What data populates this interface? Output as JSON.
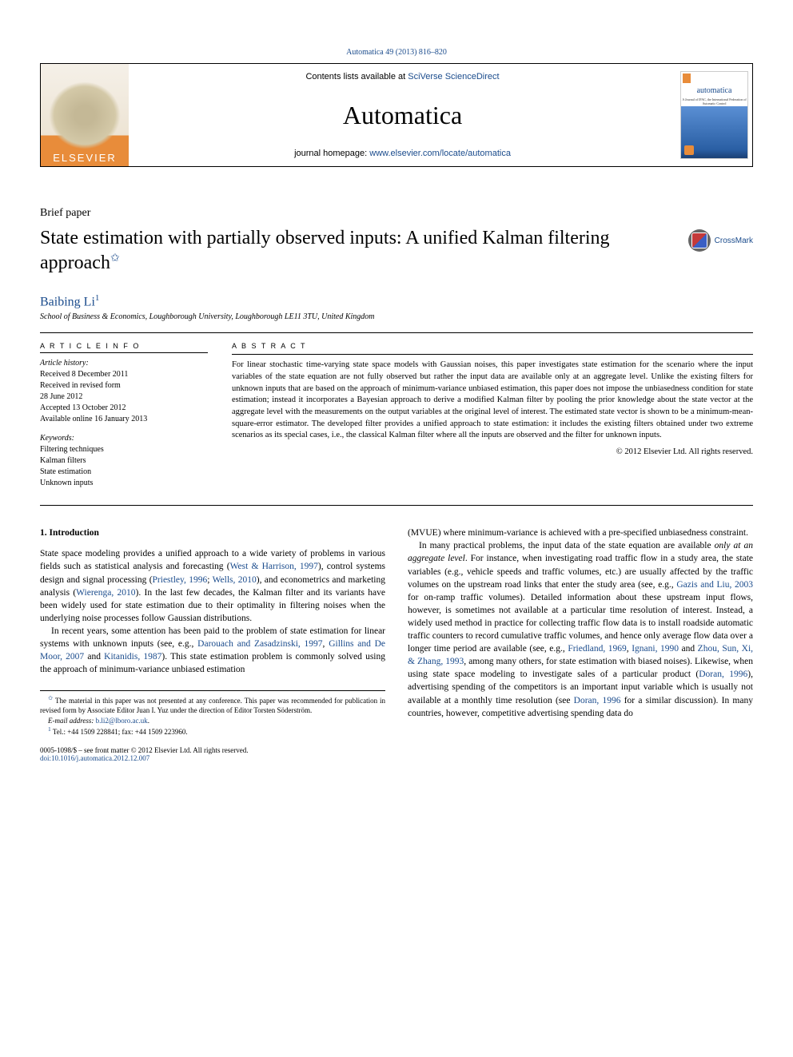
{
  "top_citation": "Automatica 49 (2013) 816–820",
  "header": {
    "contents_prefix": "Contents lists available at ",
    "contents_link": "SciVerse ScienceDirect",
    "journal": "Automatica",
    "homepage_prefix": "journal homepage: ",
    "homepage_link": "www.elsevier.com/locate/automatica",
    "elsevier": "ELSEVIER",
    "cover_title": "automatica",
    "cover_sub": "A Journal of IFAC, the International Federation of Automatic Control"
  },
  "brief_label": "Brief paper",
  "title": "State estimation with partially observed inputs: A unified Kalman filtering approach",
  "title_star": "✩",
  "crossmark": "CrossMark",
  "author": "Baibing Li",
  "author_sup": "1",
  "affiliation": "School of Business & Economics, Loughborough University, Loughborough LE11 3TU, United Kingdom",
  "meta": {
    "article_info_heading": "A R T I C L E   I N F O",
    "history_heading": "Article history:",
    "received": "Received 8 December 2011",
    "revised": "Received in revised form",
    "revised_date": "28 June 2012",
    "accepted": "Accepted 13 October 2012",
    "available": "Available online 16 January 2013",
    "keywords_heading": "Keywords:",
    "keywords": [
      "Filtering techniques",
      "Kalman filters",
      "State estimation",
      "Unknown inputs"
    ]
  },
  "abstract": {
    "heading": "A B S T R A C T",
    "text": "For linear stochastic time-varying state space models with Gaussian noises, this paper investigates state estimation for the scenario where the input variables of the state equation are not fully observed but rather the input data are available only at an aggregate level. Unlike the existing filters for unknown inputs that are based on the approach of minimum-variance unbiased estimation, this paper does not impose the unbiasedness condition for state estimation; instead it incorporates a Bayesian approach to derive a modified Kalman filter by pooling the prior knowledge about the state vector at the aggregate level with the measurements on the output variables at the original level of interest. The estimated state vector is shown to be a minimum-mean-square-error estimator. The developed filter provides a unified approach to state estimation: it includes the existing filters obtained under two extreme scenarios as its special cases, i.e., the classical Kalman filter where all the inputs are observed and the filter for unknown inputs.",
    "copyright": "© 2012 Elsevier Ltd. All rights reserved."
  },
  "body": {
    "section_number": "1.",
    "section_title": "Introduction",
    "col1": [
      {
        "type": "text",
        "content": "State space modeling provides a unified approach to a wide variety of problems in various fields such as statistical analysis and forecasting ("
      },
      {
        "type": "cite",
        "content": "West & Harrison, 1997"
      },
      {
        "type": "text",
        "content": "), control systems design and signal processing ("
      },
      {
        "type": "cite",
        "content": "Priestley, 1996"
      },
      {
        "type": "text",
        "content": "; "
      },
      {
        "type": "cite",
        "content": "Wells, 2010"
      },
      {
        "type": "text",
        "content": "), and econometrics and marketing analysis ("
      },
      {
        "type": "cite",
        "content": "Wierenga, 2010"
      },
      {
        "type": "text",
        "content": "). In the last few decades, the Kalman filter and its variants have been widely used for state estimation due to their optimality in filtering noises when the underlying noise processes follow Gaussian distributions."
      },
      {
        "type": "break"
      },
      {
        "type": "text",
        "content": "In recent years, some attention has been paid to the problem of state estimation for linear systems with unknown inputs (see, e.g., "
      },
      {
        "type": "cite",
        "content": "Darouach and Zasadzinski, 1997"
      },
      {
        "type": "text",
        "content": ", "
      },
      {
        "type": "cite",
        "content": "Gillins and De Moor, 2007"
      },
      {
        "type": "text",
        "content": " and "
      },
      {
        "type": "cite",
        "content": "Kitanidis, 1987"
      },
      {
        "type": "text",
        "content": "). This state estimation problem is commonly solved using the approach of minimum-variance unbiased estimation"
      }
    ],
    "col2": [
      {
        "type": "text",
        "content": "(MVUE) where minimum-variance is achieved with a pre-specified unbiasedness constraint."
      },
      {
        "type": "break"
      },
      {
        "type": "text",
        "content": "In many practical problems, the input data of the state equation are available "
      },
      {
        "type": "ital",
        "content": "only at an aggregate level"
      },
      {
        "type": "text",
        "content": ". For instance, when investigating road traffic flow in a study area, the state variables (e.g., vehicle speeds and traffic volumes, etc.) are usually affected by the traffic volumes on the upstream road links that enter the study area (see, e.g., "
      },
      {
        "type": "cite",
        "content": "Gazis and Liu, 2003"
      },
      {
        "type": "text",
        "content": " for on-ramp traffic volumes). Detailed information about these upstream input flows, however, is sometimes not available at a particular time resolution of interest. Instead, a widely used method in practice for collecting traffic flow data is to install roadside automatic traffic counters to record cumulative traffic volumes, and hence only average flow data over a longer time period are available (see, e.g., "
      },
      {
        "type": "cite",
        "content": "Friedland, 1969"
      },
      {
        "type": "text",
        "content": ", "
      },
      {
        "type": "cite",
        "content": "Ignani, 1990"
      },
      {
        "type": "text",
        "content": " and "
      },
      {
        "type": "cite",
        "content": "Zhou, Sun, Xi, & Zhang, 1993"
      },
      {
        "type": "text",
        "content": ", among many others, for state estimation with biased noises). Likewise, when using state space modeling to investigate sales of a particular product ("
      },
      {
        "type": "cite",
        "content": "Doran, 1996"
      },
      {
        "type": "text",
        "content": "), advertising spending of the competitors is an important input variable which is usually not available at a monthly time resolution (see "
      },
      {
        "type": "cite",
        "content": "Doran, 1996"
      },
      {
        "type": "text",
        "content": " for a similar discussion). In many countries, however, competitive advertising spending data do"
      }
    ]
  },
  "footnotes": {
    "f1": "The material in this paper was not presented at any conference. This paper was recommended for publication in revised form by Associate Editor Juan I. Yuz under the direction of Editor Torsten Söderström.",
    "email_label": "E-mail address: ",
    "email": "b.li2@lboro.ac.uk",
    "tel": "Tel.: +44 1509 228841; fax: +44 1509 223960."
  },
  "footer": {
    "line1": "0005-1098/$ – see front matter © 2012 Elsevier Ltd. All rights reserved.",
    "doi": "doi:10.1016/j.automatica.2012.12.007"
  },
  "colors": {
    "link": "#1a4b8c",
    "elsevier_orange": "#e88c3a"
  }
}
